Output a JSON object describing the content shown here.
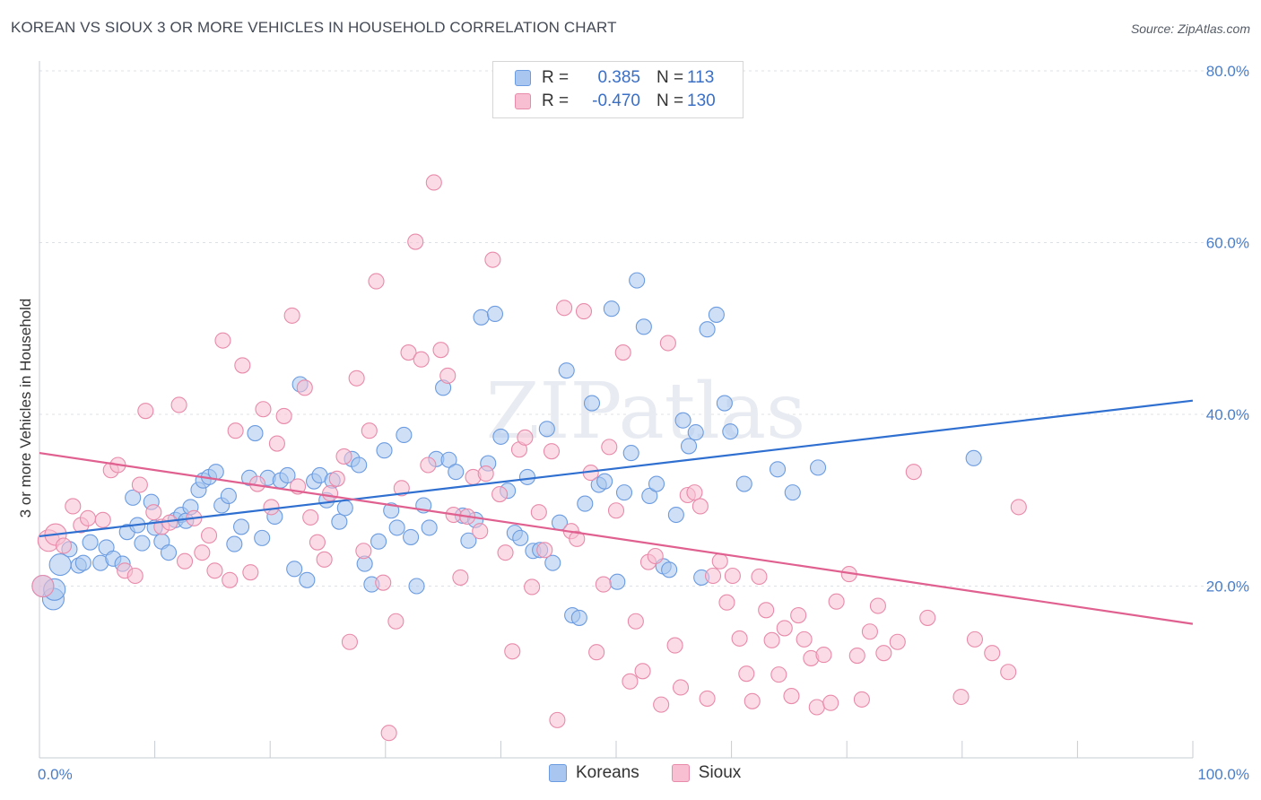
{
  "title": "KOREAN VS SIOUX 3 OR MORE VEHICLES IN HOUSEHOLD CORRELATION CHART",
  "source": "Source: ZipAtlas.com",
  "watermark": "ZIPatlas",
  "legend_box": {
    "rows": [
      {
        "r_label": "R =",
        "r_value": "0.385",
        "n_label": "N =",
        "n_value": "113",
        "color": "#a8c6ef",
        "border": "#6b9be0"
      },
      {
        "r_label": "R =",
        "r_value": "-0.470",
        "n_label": "N =",
        "n_value": "130",
        "color": "#f7bfd1",
        "border": "#e88aaa"
      }
    ]
  },
  "bottom_legend": [
    {
      "label": "Koreans",
      "color": "#a8c6ef",
      "border": "#6b9be0"
    },
    {
      "label": "Sioux",
      "color": "#f7bfd1",
      "border": "#e88aaa"
    }
  ],
  "chart_data": {
    "type": "scatter",
    "title": "KOREAN VS SIOUX 3 OR MORE VEHICLES IN HOUSEHOLD CORRELATION CHART",
    "xlabel": "",
    "ylabel": "3 or more Vehicles in Household",
    "xlim": [
      0,
      100
    ],
    "ylim": [
      0,
      80
    ],
    "x_tick_labels": [
      "0.0%",
      "100.0%"
    ],
    "y_ticks": [
      20,
      40,
      60,
      80
    ],
    "y_tick_labels": [
      "20.0%",
      "40.0%",
      "60.0%",
      "80.0%"
    ],
    "grid": true,
    "legend_position": "top-center",
    "series": [
      {
        "name": "Koreans",
        "color": "#a8c6ef",
        "stroke": "#6b9be0",
        "line_color": "#2f6fd0",
        "trend": {
          "x": [
            0,
            100
          ],
          "y": [
            25.8,
            41.6
          ]
        },
        "points": [
          [
            0.3,
            20
          ],
          [
            1.2,
            18.5
          ],
          [
            1.8,
            22.5
          ],
          [
            2.6,
            24.3
          ],
          [
            3.4,
            22.4
          ],
          [
            3.8,
            22.7
          ],
          [
            4.4,
            25.1
          ],
          [
            5.3,
            22.7
          ],
          [
            5.8,
            24.5
          ],
          [
            6.4,
            23.2
          ],
          [
            7.2,
            22.6
          ],
          [
            7.6,
            26.3
          ],
          [
            8.1,
            30.3
          ],
          [
            8.5,
            27.1
          ],
          [
            8.9,
            25
          ],
          [
            9.7,
            29.8
          ],
          [
            10,
            26.8
          ],
          [
            10.6,
            25.2
          ],
          [
            11.2,
            23.9
          ],
          [
            11.8,
            27.7
          ],
          [
            12.3,
            28.3
          ],
          [
            12.7,
            27.6
          ],
          [
            13.1,
            29.2
          ],
          [
            13.8,
            31.2
          ],
          [
            14.2,
            32.3
          ],
          [
            14.7,
            32.7
          ],
          [
            15.3,
            33.3
          ],
          [
            15.8,
            29.4
          ],
          [
            16.4,
            30.5
          ],
          [
            16.9,
            24.9
          ],
          [
            17.5,
            26.9
          ],
          [
            18.2,
            32.6
          ],
          [
            18.7,
            37.8
          ],
          [
            19.3,
            25.6
          ],
          [
            19.8,
            32.6
          ],
          [
            20.4,
            28.1
          ],
          [
            20.9,
            32.3
          ],
          [
            21.5,
            32.9
          ],
          [
            22.1,
            22
          ],
          [
            22.6,
            43.5
          ],
          [
            23.2,
            20.7
          ],
          [
            23.8,
            32.2
          ],
          [
            24.3,
            32.9
          ],
          [
            24.9,
            30
          ],
          [
            25.4,
            32.3
          ],
          [
            26,
            27.5
          ],
          [
            26.5,
            29.1
          ],
          [
            27.1,
            34.8
          ],
          [
            27.7,
            34.1
          ],
          [
            28.2,
            22.6
          ],
          [
            28.8,
            20.2
          ],
          [
            29.4,
            25.2
          ],
          [
            29.9,
            35.8
          ],
          [
            30.5,
            28.8
          ],
          [
            31,
            26.8
          ],
          [
            31.6,
            37.6
          ],
          [
            32.2,
            25.7
          ],
          [
            32.7,
            20
          ],
          [
            33.3,
            29.4
          ],
          [
            33.8,
            26.8
          ],
          [
            34.4,
            34.8
          ],
          [
            35,
            43.1
          ],
          [
            35.5,
            34.7
          ],
          [
            36.1,
            33.3
          ],
          [
            36.7,
            28.2
          ],
          [
            37.2,
            25.3
          ],
          [
            37.8,
            27.7
          ],
          [
            38.3,
            51.3
          ],
          [
            38.9,
            34.3
          ],
          [
            39.5,
            51.7
          ],
          [
            40,
            37.4
          ],
          [
            40.6,
            31.1
          ],
          [
            41.2,
            26.2
          ],
          [
            41.7,
            25.6
          ],
          [
            42.3,
            32.7
          ],
          [
            42.8,
            24.1
          ],
          [
            43.4,
            24.2
          ],
          [
            44,
            38.3
          ],
          [
            44.5,
            22.7
          ],
          [
            45.1,
            27.4
          ],
          [
            45.7,
            45.1
          ],
          [
            46.2,
            16.6
          ],
          [
            46.8,
            16.3
          ],
          [
            47.3,
            29.6
          ],
          [
            47.9,
            41.3
          ],
          [
            48.5,
            31.8
          ],
          [
            49,
            32.2
          ],
          [
            49.6,
            52.3
          ],
          [
            50.1,
            20.5
          ],
          [
            50.7,
            30.9
          ],
          [
            51.3,
            35.5
          ],
          [
            51.8,
            55.6
          ],
          [
            52.4,
            50.2
          ],
          [
            52.9,
            30.5
          ],
          [
            53.5,
            31.9
          ],
          [
            54.1,
            22.3
          ],
          [
            54.6,
            21.9
          ],
          [
            55.2,
            28.3
          ],
          [
            55.8,
            39.3
          ],
          [
            56.3,
            36.3
          ],
          [
            56.9,
            37.9
          ],
          [
            57.4,
            21
          ],
          [
            57.9,
            49.9
          ],
          [
            58.7,
            51.6
          ],
          [
            59.4,
            41.3
          ],
          [
            59.9,
            38
          ],
          [
            61.1,
            31.9
          ],
          [
            64,
            33.6
          ],
          [
            65.3,
            30.9
          ],
          [
            67.5,
            33.8
          ],
          [
            81,
            34.9
          ],
          [
            1.3,
            19.6
          ]
        ]
      },
      {
        "name": "Sioux",
        "color": "#f7bfd1",
        "stroke": "#e88aaa",
        "line_color": "#e0608f",
        "trend": {
          "x": [
            0,
            100
          ],
          "y": [
            35.5,
            15.6
          ]
        },
        "points": [
          [
            0.3,
            20
          ],
          [
            0.8,
            25.3
          ],
          [
            1.4,
            26
          ],
          [
            2.1,
            24.7
          ],
          [
            2.9,
            29.3
          ],
          [
            3.6,
            27.1
          ],
          [
            4.2,
            27.9
          ],
          [
            5.5,
            27.7
          ],
          [
            6.2,
            33.5
          ],
          [
            6.8,
            34.1
          ],
          [
            7.4,
            21.8
          ],
          [
            8.3,
            21.2
          ],
          [
            8.7,
            31.8
          ],
          [
            9.2,
            40.4
          ],
          [
            9.9,
            28.6
          ],
          [
            10.6,
            26.9
          ],
          [
            11.3,
            27.4
          ],
          [
            12.1,
            41.1
          ],
          [
            12.6,
            22.9
          ],
          [
            13.4,
            27.9
          ],
          [
            14.1,
            23.9
          ],
          [
            14.7,
            25.9
          ],
          [
            15.2,
            21.8
          ],
          [
            15.9,
            48.6
          ],
          [
            16.5,
            20.7
          ],
          [
            17,
            38.1
          ],
          [
            17.6,
            45.7
          ],
          [
            18.3,
            21.6
          ],
          [
            18.9,
            31.9
          ],
          [
            19.4,
            40.6
          ],
          [
            20.1,
            29.2
          ],
          [
            20.6,
            36.6
          ],
          [
            21.2,
            39.8
          ],
          [
            21.9,
            51.5
          ],
          [
            22.4,
            31.6
          ],
          [
            23,
            43.1
          ],
          [
            23.5,
            28
          ],
          [
            24.1,
            25.1
          ],
          [
            24.7,
            23.1
          ],
          [
            25.2,
            30.8
          ],
          [
            25.8,
            32.5
          ],
          [
            26.4,
            35.1
          ],
          [
            26.9,
            13.5
          ],
          [
            27.5,
            44.2
          ],
          [
            28.1,
            24.1
          ],
          [
            28.6,
            38.1
          ],
          [
            29.2,
            55.5
          ],
          [
            29.8,
            20.4
          ],
          [
            30.3,
            2.9
          ],
          [
            30.9,
            15.9
          ],
          [
            31.4,
            31.4
          ],
          [
            32,
            47.2
          ],
          [
            32.6,
            60.1
          ],
          [
            33.1,
            46.4
          ],
          [
            33.7,
            34.1
          ],
          [
            34.2,
            67
          ],
          [
            34.8,
            47.5
          ],
          [
            35.4,
            44.5
          ],
          [
            35.9,
            28.3
          ],
          [
            36.5,
            21
          ],
          [
            37.1,
            28.1
          ],
          [
            37.6,
            32.7
          ],
          [
            38.2,
            26.4
          ],
          [
            38.7,
            33.1
          ],
          [
            39.3,
            58
          ],
          [
            39.9,
            30.7
          ],
          [
            40.4,
            23.9
          ],
          [
            41,
            12.4
          ],
          [
            41.6,
            35.9
          ],
          [
            42.1,
            37.3
          ],
          [
            42.7,
            19.9
          ],
          [
            43.3,
            28.6
          ],
          [
            43.8,
            24.2
          ],
          [
            44.4,
            35.7
          ],
          [
            44.9,
            4.4
          ],
          [
            45.5,
            52.4
          ],
          [
            46.1,
            26.4
          ],
          [
            46.6,
            25.5
          ],
          [
            47.2,
            52
          ],
          [
            47.8,
            33.2
          ],
          [
            48.3,
            12.3
          ],
          [
            48.9,
            20.2
          ],
          [
            49.4,
            36.2
          ],
          [
            50,
            28.8
          ],
          [
            50.6,
            47.2
          ],
          [
            51.2,
            8.9
          ],
          [
            51.7,
            15.9
          ],
          [
            52.3,
            10.1
          ],
          [
            52.8,
            22.8
          ],
          [
            53.4,
            23.5
          ],
          [
            53.9,
            6.2
          ],
          [
            54.5,
            48.3
          ],
          [
            55.1,
            13.1
          ],
          [
            55.6,
            8.2
          ],
          [
            56.2,
            30.6
          ],
          [
            56.8,
            30.9
          ],
          [
            57.3,
            29.3
          ],
          [
            57.9,
            6.9
          ],
          [
            58.4,
            21.2
          ],
          [
            59,
            22.9
          ],
          [
            59.6,
            18.1
          ],
          [
            60.1,
            21.2
          ],
          [
            60.7,
            13.9
          ],
          [
            61.3,
            9.8
          ],
          [
            61.8,
            6.6
          ],
          [
            62.4,
            21.1
          ],
          [
            63,
            17.2
          ],
          [
            63.5,
            13.7
          ],
          [
            64.1,
            9.7
          ],
          [
            64.6,
            15.1
          ],
          [
            65.2,
            7.2
          ],
          [
            65.8,
            16.6
          ],
          [
            66.3,
            13.8
          ],
          [
            66.9,
            11.6
          ],
          [
            67.4,
            5.9
          ],
          [
            68,
            12
          ],
          [
            68.6,
            6.4
          ],
          [
            69.1,
            18.2
          ],
          [
            70.2,
            21.4
          ],
          [
            70.9,
            11.9
          ],
          [
            71.3,
            6.8
          ],
          [
            72,
            14.7
          ],
          [
            72.7,
            17.7
          ],
          [
            73.2,
            12.2
          ],
          [
            74.4,
            13.5
          ],
          [
            75.8,
            33.3
          ],
          [
            77,
            16.3
          ],
          [
            79.9,
            7.1
          ],
          [
            81.1,
            13.8
          ],
          [
            82.6,
            12.2
          ],
          [
            84,
            10
          ],
          [
            84.9,
            29.2
          ]
        ]
      }
    ]
  }
}
